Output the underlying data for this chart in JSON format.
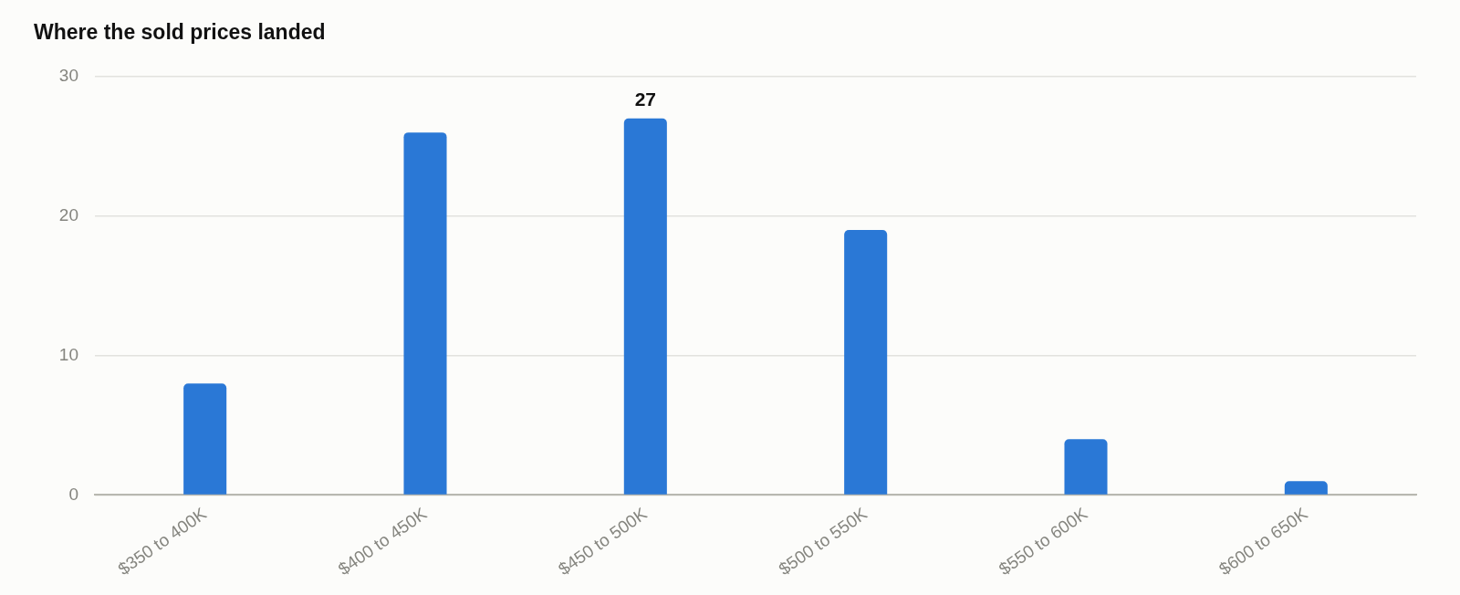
{
  "chart_data": {
    "type": "bar",
    "title": "Where the sold prices landed",
    "categories": [
      "$350 to 400K",
      "$400 to 450K",
      "$450 to 500K",
      "$500 to 550K",
      "$550 to 600K",
      "$600 to 650K"
    ],
    "values": [
      8,
      26,
      27,
      19,
      4,
      1
    ],
    "color": "#2a78d6",
    "value_labels": [
      null,
      null,
      "27",
      null,
      null,
      null
    ],
    "ylim": [
      0,
      30
    ],
    "yticks": [
      0,
      10,
      20,
      30
    ],
    "grid": "y"
  }
}
